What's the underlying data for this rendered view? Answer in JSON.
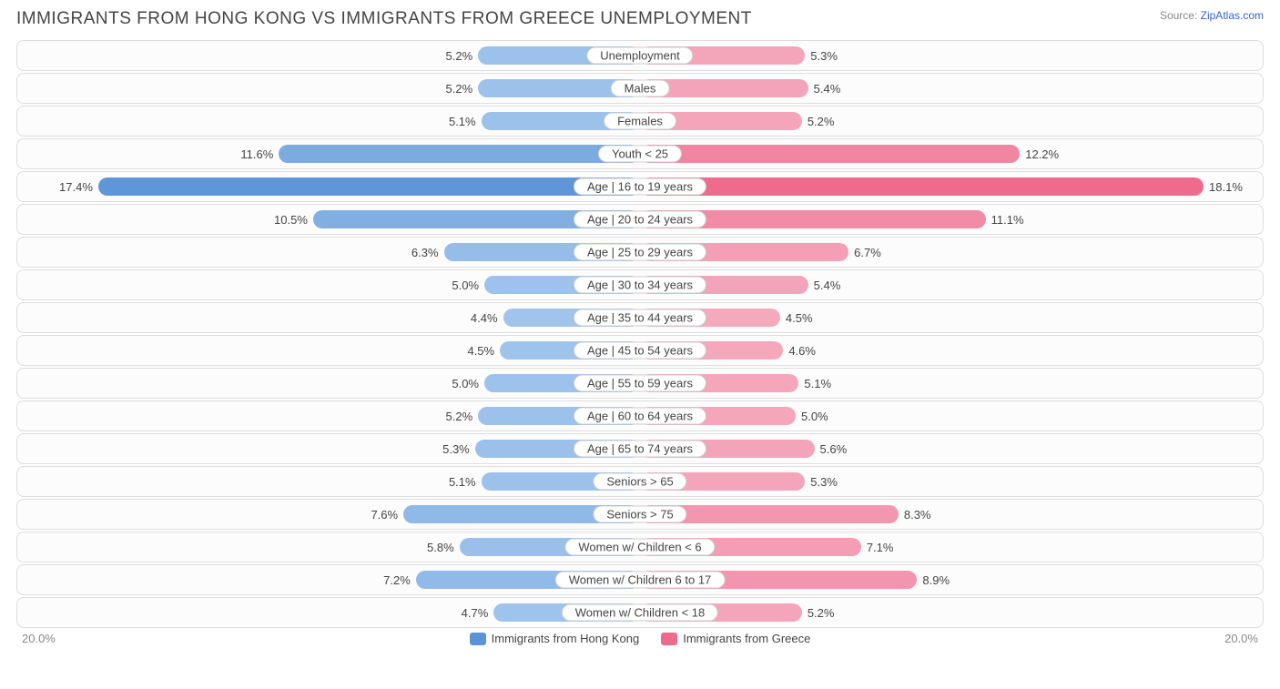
{
  "title": "IMMIGRANTS FROM HONG KONG VS IMMIGRANTS FROM GREECE UNEMPLOYMENT",
  "source_label": "Source:",
  "source_name": "ZipAtlas.com",
  "chart": {
    "type": "diverging-bar",
    "max": 20.0,
    "axis_left": "20.0%",
    "axis_right": "20.0%",
    "left": {
      "name": "Immigrants from Hong Kong",
      "color_light": "#a0c4ec",
      "color_dark": "#5b94d6"
    },
    "right": {
      "name": "Immigrants from Greece",
      "color_light": "#f5a9bd",
      "color_dark": "#ee6b8e"
    },
    "row_bg": "#fcfcfc",
    "row_border": "#dddddd",
    "rows": [
      {
        "label": "Unemployment",
        "l": 5.2,
        "r": 5.3
      },
      {
        "label": "Males",
        "l": 5.2,
        "r": 5.4
      },
      {
        "label": "Females",
        "l": 5.1,
        "r": 5.2
      },
      {
        "label": "Youth < 25",
        "l": 11.6,
        "r": 12.2
      },
      {
        "label": "Age | 16 to 19 years",
        "l": 17.4,
        "r": 18.1
      },
      {
        "label": "Age | 20 to 24 years",
        "l": 10.5,
        "r": 11.1
      },
      {
        "label": "Age | 25 to 29 years",
        "l": 6.3,
        "r": 6.7
      },
      {
        "label": "Age | 30 to 34 years",
        "l": 5.0,
        "r": 5.4
      },
      {
        "label": "Age | 35 to 44 years",
        "l": 4.4,
        "r": 4.5
      },
      {
        "label": "Age | 45 to 54 years",
        "l": 4.5,
        "r": 4.6
      },
      {
        "label": "Age | 55 to 59 years",
        "l": 5.0,
        "r": 5.1
      },
      {
        "label": "Age | 60 to 64 years",
        "l": 5.2,
        "r": 5.0
      },
      {
        "label": "Age | 65 to 74 years",
        "l": 5.3,
        "r": 5.6
      },
      {
        "label": "Seniors > 65",
        "l": 5.1,
        "r": 5.3
      },
      {
        "label": "Seniors > 75",
        "l": 7.6,
        "r": 8.3
      },
      {
        "label": "Women w/ Children < 6",
        "l": 5.8,
        "r": 7.1
      },
      {
        "label": "Women w/ Children 6 to 17",
        "l": 7.2,
        "r": 8.9
      },
      {
        "label": "Women w/ Children < 18",
        "l": 4.7,
        "r": 5.2
      }
    ]
  }
}
